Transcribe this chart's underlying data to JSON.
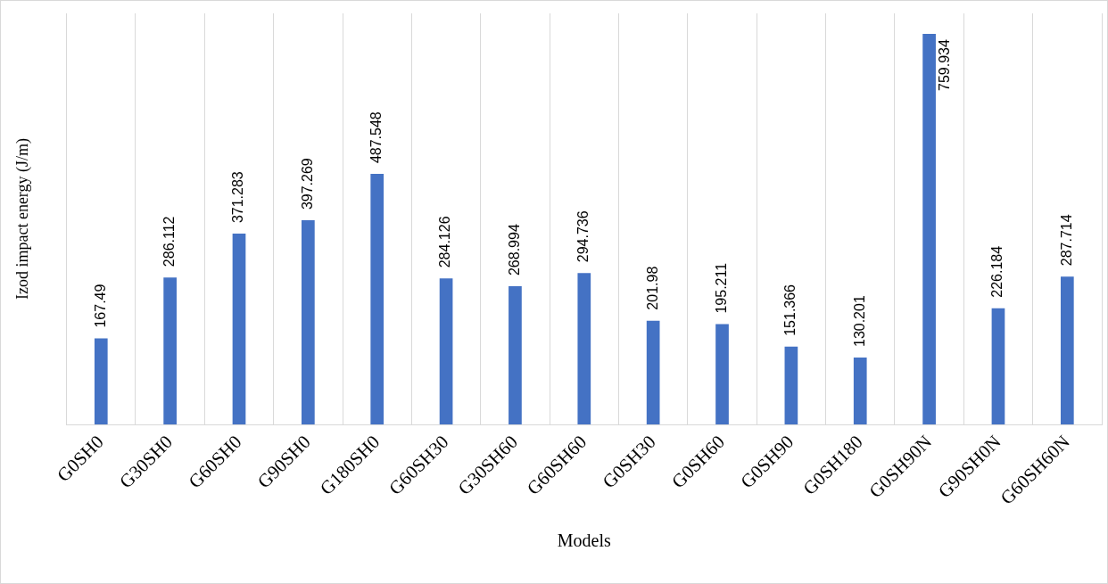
{
  "chart_data": {
    "type": "bar",
    "xlabel": "Models",
    "ylabel": "Izod impact energy (J/m)",
    "categories": [
      "G0SH0",
      "G30SH0",
      "G60SH0",
      "G90SH0",
      "G180SH0",
      "G60SH30",
      "G30SH60",
      "G60SH60",
      "G0SH30",
      "G0SH60",
      "G0SH90",
      "G0SH180",
      "G0SH90N",
      "G90SH0N",
      "G60SH60N"
    ],
    "values": [
      167.49,
      286.112,
      371.283,
      397.269,
      487.548,
      284.126,
      268.994,
      294.736,
      201.98,
      195.211,
      151.366,
      130.201,
      759.934,
      226.184,
      287.714
    ],
    "color": "#4472c4",
    "data_labels": true,
    "grid": "x",
    "legend": false
  }
}
